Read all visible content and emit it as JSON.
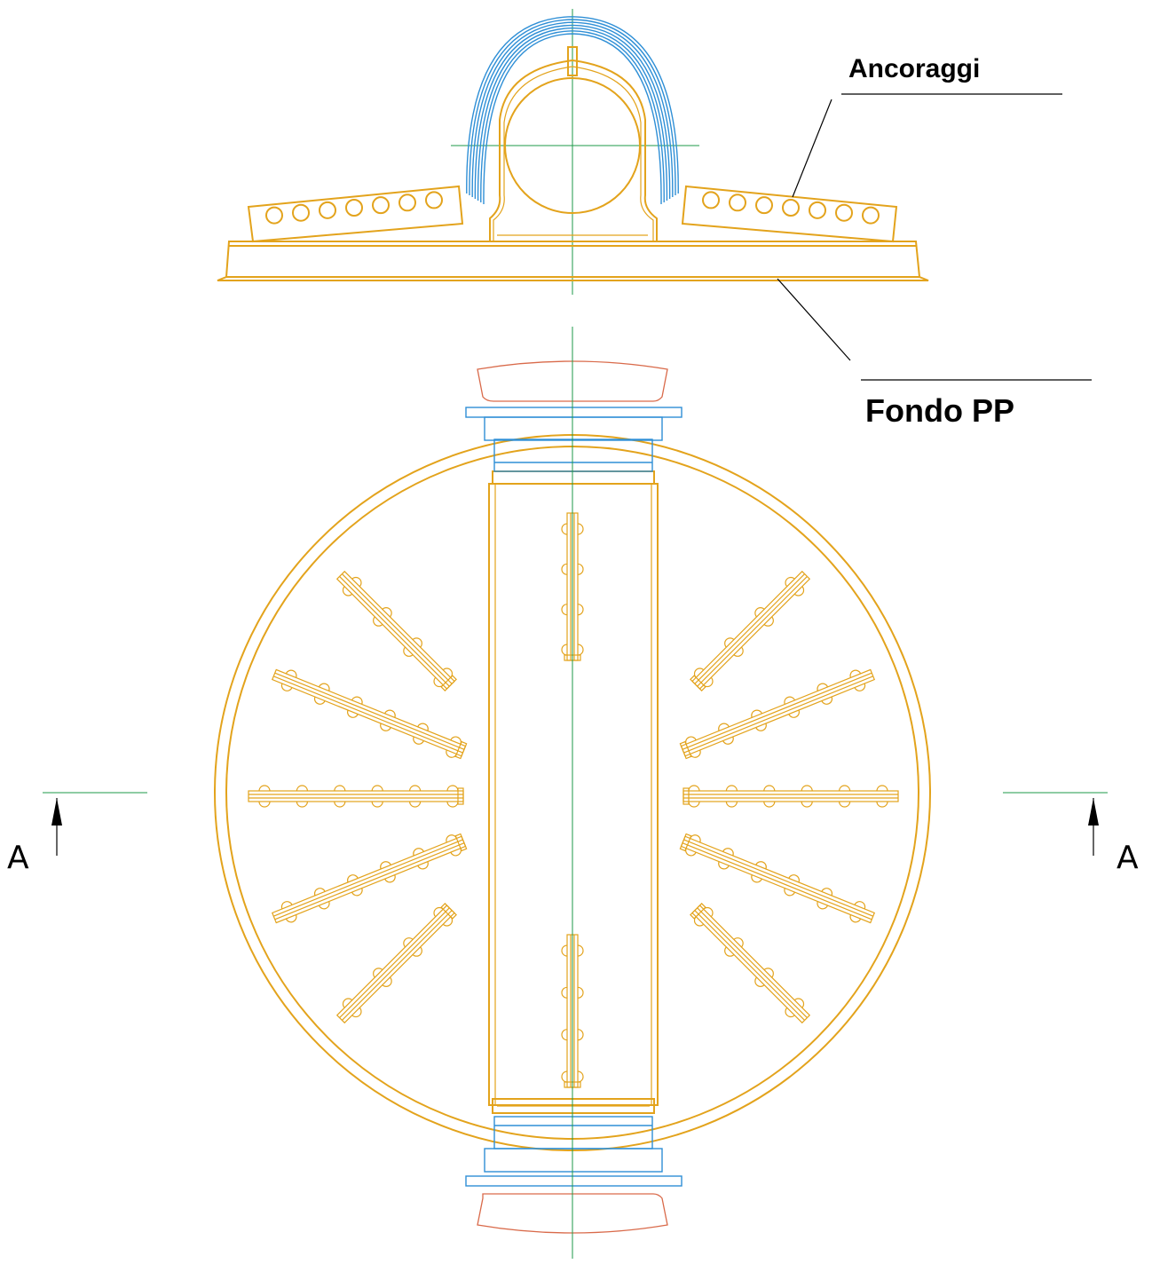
{
  "labels": {
    "top_callout": "Ancoraggi",
    "bottom_callout": "Fondo PP",
    "section_left": "A",
    "section_right": "A"
  },
  "colors": {
    "body_outline": "#e3a31c",
    "pipe_flanges": "#2f8fd6",
    "pipe_caps": "#d96a4a",
    "center_lines": "#1e9a4a",
    "text": "#000000"
  },
  "anchor_holes_per_side": 7,
  "radial_arms": 10
}
